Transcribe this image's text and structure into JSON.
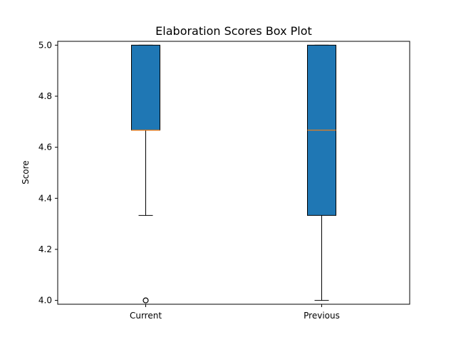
{
  "chart_data": {
    "type": "box",
    "title": "Elaboration Scores Box Plot",
    "xlabel": "",
    "ylabel": "Score",
    "ylim": [
      3.985,
      5.015
    ],
    "yticks": [
      "4.0",
      "4.2",
      "4.4",
      "4.6",
      "4.8",
      "5.0"
    ],
    "grid": false,
    "categories": [
      "Current",
      "Previous"
    ],
    "boxes": [
      {
        "category": "Current",
        "whisker_low": 4.333,
        "q1": 4.667,
        "median": 4.667,
        "q3": 5.0,
        "whisker_high": 5.0,
        "outliers": [
          4.0
        ]
      },
      {
        "category": "Previous",
        "whisker_low": 4.0,
        "q1": 4.333,
        "median": 4.667,
        "q3": 5.0,
        "whisker_high": 5.0,
        "outliers": []
      }
    ],
    "colors": {
      "box_fill": "#1f77b4",
      "median": "#ff7f0e",
      "line": "#000000"
    }
  }
}
